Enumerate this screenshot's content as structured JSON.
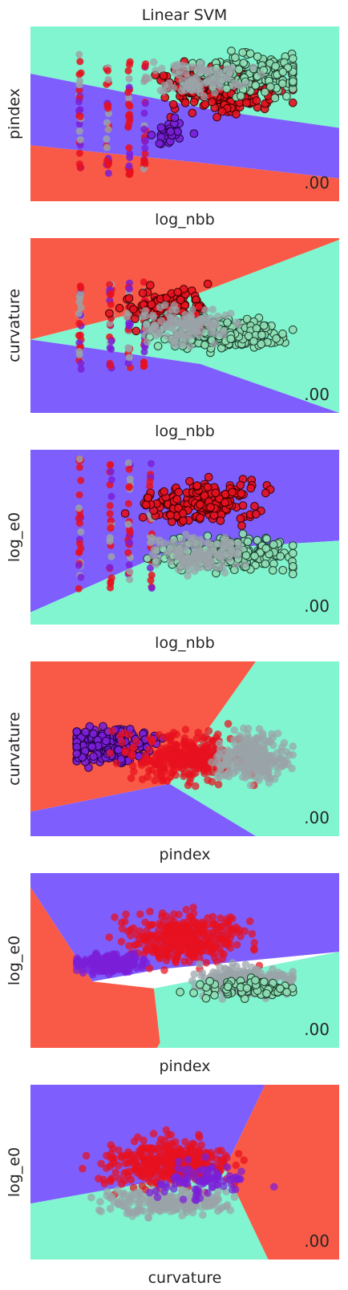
{
  "title": "Linear SVM",
  "colors": {
    "red": "#f95a47",
    "purple": "#7e5ffd",
    "teal": "#80f5d0",
    "pt_red": "#e8111f",
    "pt_purple": "#7b1fd8",
    "pt_teal": "#8fe0b5",
    "pt_gray": "#9aa3a8"
  },
  "chart_data": [
    {
      "type": "scatter",
      "xlabel": "log_nbb",
      "ylabel": "pindex",
      "score": ".00",
      "regions": {
        "top": "teal",
        "middle": "purple",
        "bottom": "red"
      }
    },
    {
      "type": "scatter",
      "xlabel": "log_nbb",
      "ylabel": "curvature",
      "score": ".00",
      "regions": {
        "top": "red",
        "middle": "teal",
        "bottom": "purple"
      }
    },
    {
      "type": "scatter",
      "xlabel": "log_nbb",
      "ylabel": "log_e0",
      "score": ".00",
      "regions": {
        "top": "purple",
        "middle": "teal",
        "bottom": "teal"
      }
    },
    {
      "type": "scatter",
      "xlabel": "pindex",
      "ylabel": "curvature",
      "score": ".00",
      "regions": {
        "left": "red",
        "right": "teal",
        "bottom": "purple"
      }
    },
    {
      "type": "scatter",
      "xlabel": "pindex",
      "ylabel": "log_e0",
      "score": ".00",
      "regions": {
        "top": "purple",
        "left": "red",
        "right": "teal"
      }
    },
    {
      "type": "scatter",
      "xlabel": "curvature",
      "ylabel": "log_e0",
      "score": ".00",
      "regions": {
        "left": "purple",
        "right": "red",
        "bottom": "teal"
      }
    }
  ]
}
